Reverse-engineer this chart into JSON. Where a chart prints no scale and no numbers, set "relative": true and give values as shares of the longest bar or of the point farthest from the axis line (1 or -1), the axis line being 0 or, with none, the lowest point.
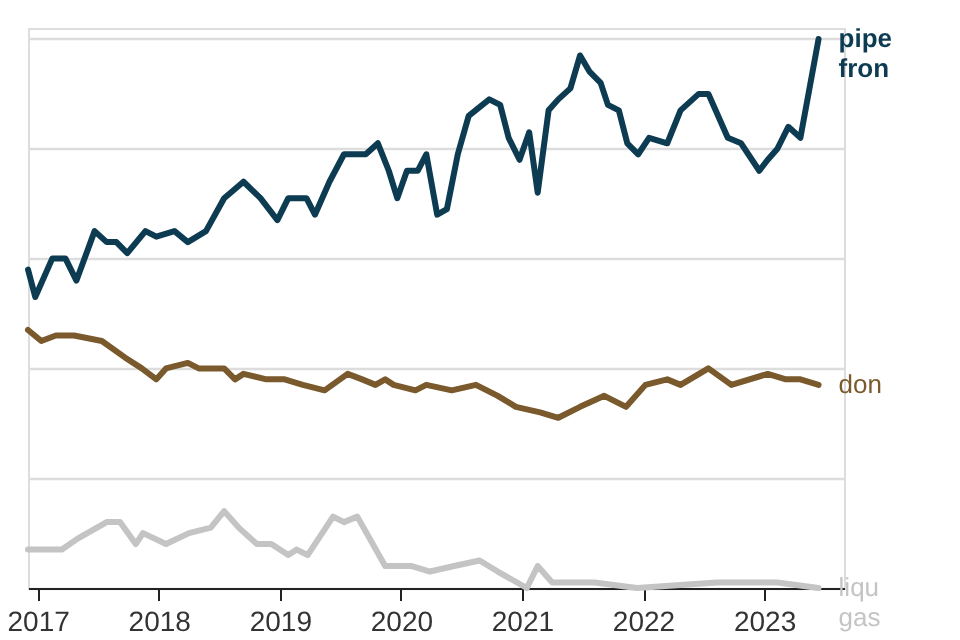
{
  "chart_data": {
    "type": "line",
    "relative": true,
    "grid": "y",
    "legend": false,
    "xlim": [
      2016.92,
      2023.66
    ],
    "xticks": [
      2017,
      2018,
      2019,
      2020,
      2021,
      2022,
      2023
    ],
    "series": [
      {
        "name": "pipe\nfron",
        "color": "#0d3b52",
        "x": [
          2016.92,
          2016.98,
          2017.12,
          2017.23,
          2017.32,
          2017.47,
          2017.57,
          2017.65,
          2017.74,
          2017.89,
          2017.98,
          2018.13,
          2018.24,
          2018.39,
          2018.54,
          2018.7,
          2018.84,
          2018.98,
          2019.07,
          2019.22,
          2019.29,
          2019.41,
          2019.53,
          2019.71,
          2019.81,
          2019.9,
          2019.97,
          2020.05,
          2020.14,
          2020.21,
          2020.3,
          2020.38,
          2020.47,
          2020.56,
          2020.73,
          2020.82,
          2020.89,
          2020.98,
          2021.06,
          2021.13,
          2021.22,
          2021.3,
          2021.4,
          2021.48,
          2021.56,
          2021.65,
          2021.71,
          2021.8,
          2021.87,
          2021.96,
          2022.05,
          2022.2,
          2022.31,
          2022.46,
          2022.54,
          2022.7,
          2022.81,
          2022.96,
          2023.03,
          2023.11,
          2023.2,
          2023.3,
          2023.45
        ],
        "values": [
          0.58,
          0.53,
          0.6,
          0.6,
          0.56,
          0.65,
          0.63,
          0.63,
          0.61,
          0.65,
          0.64,
          0.65,
          0.63,
          0.65,
          0.71,
          0.74,
          0.71,
          0.67,
          0.71,
          0.71,
          0.68,
          0.74,
          0.79,
          0.79,
          0.81,
          0.76,
          0.71,
          0.76,
          0.76,
          0.79,
          0.68,
          0.69,
          0.79,
          0.86,
          0.89,
          0.88,
          0.82,
          0.78,
          0.83,
          0.72,
          0.87,
          0.89,
          0.91,
          0.97,
          0.94,
          0.92,
          0.88,
          0.87,
          0.81,
          0.79,
          0.82,
          0.81,
          0.87,
          0.9,
          0.9,
          0.82,
          0.81,
          0.76,
          0.78,
          0.8,
          0.84,
          0.82,
          1.0
        ]
      },
      {
        "name": "don",
        "color": "#7a5a2c",
        "x": [
          2016.92,
          2017.03,
          2017.15,
          2017.3,
          2017.53,
          2017.72,
          2017.86,
          2017.98,
          2018.06,
          2018.24,
          2018.33,
          2018.54,
          2018.63,
          2018.7,
          2018.89,
          2019.04,
          2019.19,
          2019.37,
          2019.56,
          2019.68,
          2019.79,
          2019.87,
          2019.94,
          2020.12,
          2020.21,
          2020.42,
          2020.62,
          2020.8,
          2020.95,
          2021.15,
          2021.3,
          2021.48,
          2021.68,
          2021.86,
          2022.02,
          2022.2,
          2022.31,
          2022.54,
          2022.73,
          2023.03,
          2023.18,
          2023.3,
          2023.45
        ],
        "values": [
          0.47,
          0.45,
          0.46,
          0.46,
          0.45,
          0.42,
          0.4,
          0.38,
          0.4,
          0.41,
          0.4,
          0.4,
          0.38,
          0.39,
          0.38,
          0.38,
          0.37,
          0.36,
          0.39,
          0.38,
          0.37,
          0.38,
          0.37,
          0.36,
          0.37,
          0.36,
          0.37,
          0.35,
          0.33,
          0.32,
          0.31,
          0.33,
          0.35,
          0.33,
          0.37,
          0.38,
          0.37,
          0.4,
          0.37,
          0.39,
          0.38,
          0.38,
          0.37
        ]
      },
      {
        "name": "liqu\ngas",
        "color": "#c4c4c4",
        "x": [
          2016.92,
          2017.2,
          2017.33,
          2017.57,
          2017.68,
          2017.81,
          2017.87,
          2018.06,
          2018.25,
          2018.43,
          2018.54,
          2018.66,
          2018.81,
          2018.93,
          2019.07,
          2019.14,
          2019.23,
          2019.44,
          2019.53,
          2019.64,
          2019.87,
          2020.09,
          2020.24,
          2020.44,
          2020.65,
          2020.8,
          2021.04,
          2021.13,
          2021.25,
          2021.6,
          2021.95,
          2022.61,
          2023.11,
          2023.45
        ],
        "values": [
          0.07,
          0.07,
          0.09,
          0.12,
          0.12,
          0.08,
          0.1,
          0.08,
          0.1,
          0.11,
          0.14,
          0.11,
          0.08,
          0.08,
          0.06,
          0.07,
          0.06,
          0.13,
          0.12,
          0.13,
          0.04,
          0.04,
          0.03,
          0.04,
          0.05,
          0.03,
          0.0,
          0.04,
          0.01,
          0.01,
          0.0,
          0.01,
          0.01,
          0.0
        ]
      }
    ]
  }
}
